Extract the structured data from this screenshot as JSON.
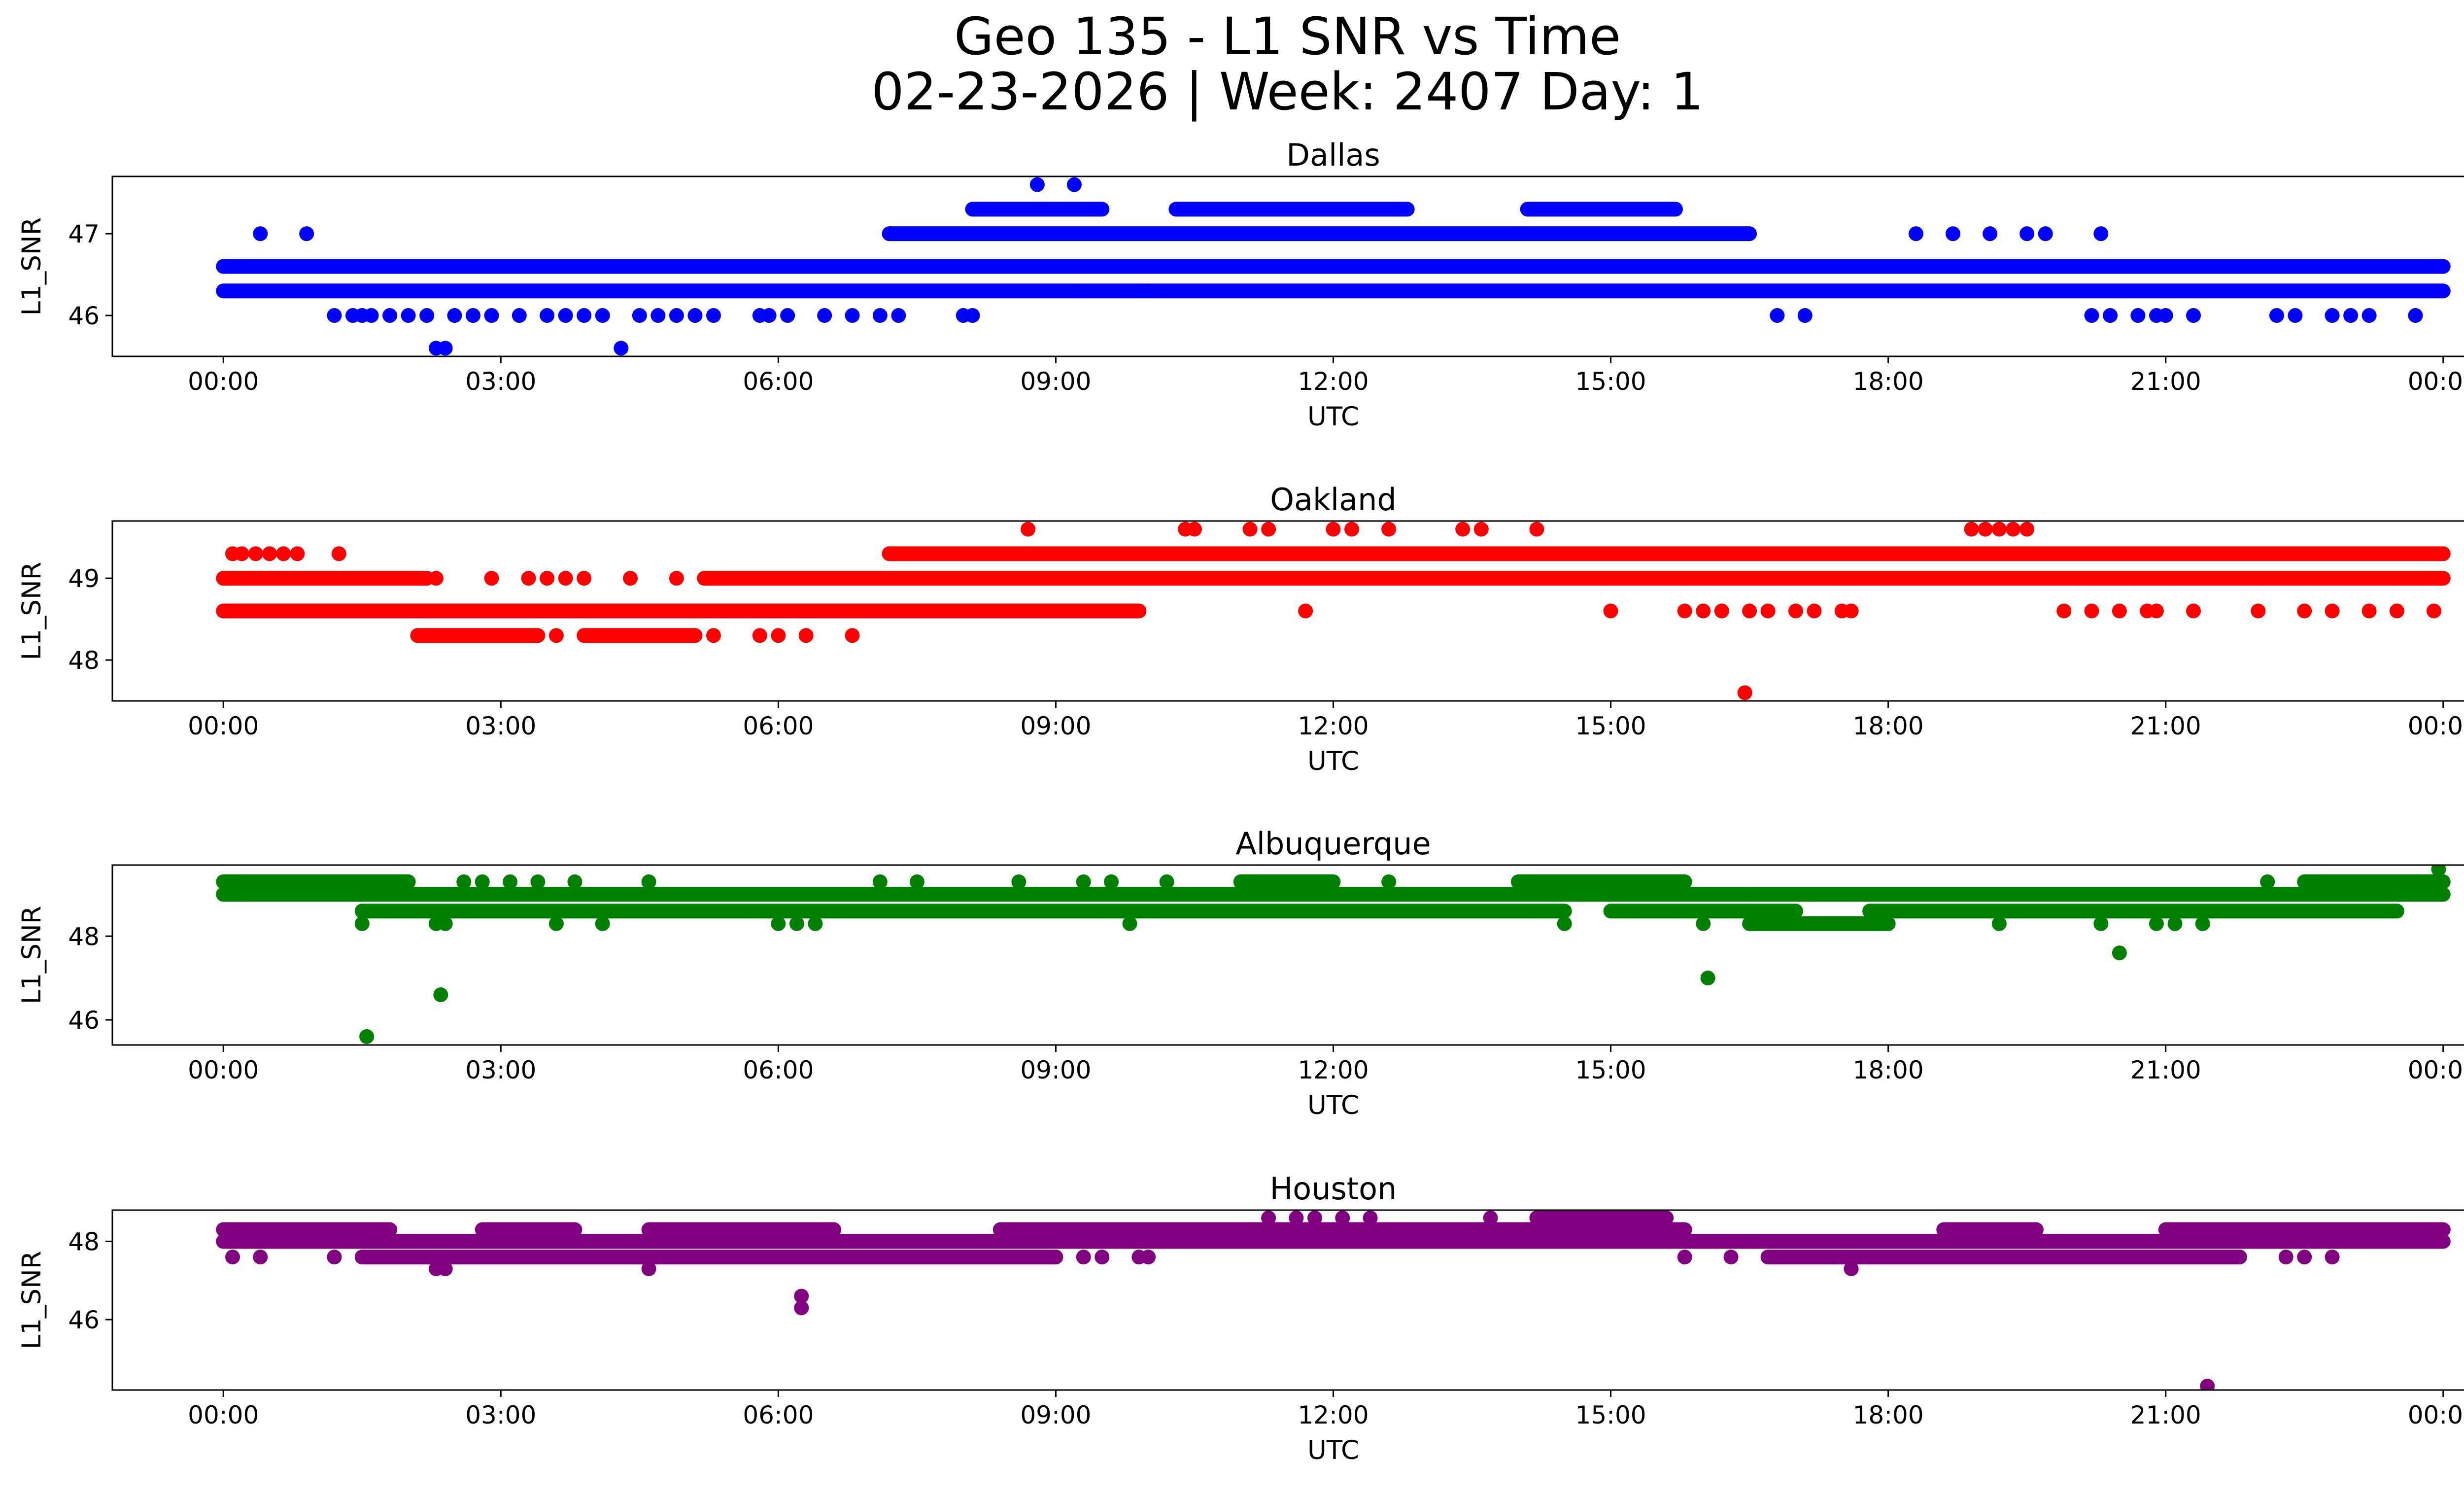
{
  "title_line1": "Geo 135 - L1 SNR vs Time",
  "title_line2": "02-23-2026 | Week: 2407 Day: 1",
  "chart_data": [
    {
      "type": "scatter",
      "title": "Dallas",
      "xlabel": "UTC",
      "ylabel": "L1_SNR",
      "color": "#0000ff",
      "xlim": [
        -1.2,
        25.2
      ],
      "ylim": [
        45.5,
        47.7
      ],
      "yticks": [
        46,
        47
      ],
      "xticks": [
        "00:00",
        "03:00",
        "06:00",
        "09:00",
        "12:00",
        "15:00",
        "18:00",
        "21:00",
        "00:00"
      ],
      "bands": [
        {
          "y": 46.3,
          "from": 0.0,
          "to": 24.0
        },
        {
          "y": 46.6,
          "from": 0.0,
          "to": 24.0
        },
        {
          "y": 47.0,
          "from": 7.2,
          "to": 16.5
        },
        {
          "y": 47.3,
          "from": 8.1,
          "to": 9.5
        },
        {
          "y": 47.3,
          "from": 10.3,
          "to": 12.8
        },
        {
          "y": 47.3,
          "from": 14.1,
          "to": 15.7
        }
      ],
      "points": [
        {
          "x": 0.4,
          "y": 47.0
        },
        {
          "x": 0.9,
          "y": 47.0
        },
        {
          "x": 1.2,
          "y": 46.0
        },
        {
          "x": 1.4,
          "y": 46.0
        },
        {
          "x": 1.5,
          "y": 46.0
        },
        {
          "x": 1.6,
          "y": 46.0
        },
        {
          "x": 1.8,
          "y": 46.0
        },
        {
          "x": 2.0,
          "y": 46.0
        },
        {
          "x": 2.1,
          "y": 46.6
        },
        {
          "x": 2.2,
          "y": 46.0
        },
        {
          "x": 2.3,
          "y": 45.6
        },
        {
          "x": 2.4,
          "y": 45.6
        },
        {
          "x": 2.5,
          "y": 46.0
        },
        {
          "x": 2.7,
          "y": 46.0
        },
        {
          "x": 2.9,
          "y": 46.0
        },
        {
          "x": 3.0,
          "y": 46.6
        },
        {
          "x": 3.2,
          "y": 46.0
        },
        {
          "x": 3.3,
          "y": 46.6
        },
        {
          "x": 3.5,
          "y": 46.0
        },
        {
          "x": 3.7,
          "y": 46.0
        },
        {
          "x": 3.9,
          "y": 46.0
        },
        {
          "x": 4.1,
          "y": 46.0
        },
        {
          "x": 4.3,
          "y": 45.6
        },
        {
          "x": 4.5,
          "y": 46.0
        },
        {
          "x": 4.7,
          "y": 46.0
        },
        {
          "x": 4.9,
          "y": 46.0
        },
        {
          "x": 5.1,
          "y": 46.0
        },
        {
          "x": 5.3,
          "y": 46.0
        },
        {
          "x": 5.8,
          "y": 46.0
        },
        {
          "x": 5.9,
          "y": 46.0
        },
        {
          "x": 6.1,
          "y": 46.0
        },
        {
          "x": 6.5,
          "y": 46.0
        },
        {
          "x": 6.8,
          "y": 46.0
        },
        {
          "x": 7.1,
          "y": 46.0
        },
        {
          "x": 7.3,
          "y": 46.0
        },
        {
          "x": 8.0,
          "y": 46.0
        },
        {
          "x": 8.1,
          "y": 46.0
        },
        {
          "x": 8.8,
          "y": 47.6
        },
        {
          "x": 9.2,
          "y": 47.6
        },
        {
          "x": 9.2,
          "y": 46.3
        },
        {
          "x": 9.9,
          "y": 46.3
        },
        {
          "x": 10.0,
          "y": 46.3
        },
        {
          "x": 11.5,
          "y": 46.6
        },
        {
          "x": 14.4,
          "y": 46.6
        },
        {
          "x": 16.8,
          "y": 46.0
        },
        {
          "x": 17.1,
          "y": 46.0
        },
        {
          "x": 18.3,
          "y": 47.0
        },
        {
          "x": 18.7,
          "y": 47.0
        },
        {
          "x": 19.1,
          "y": 47.0
        },
        {
          "x": 19.5,
          "y": 47.0
        },
        {
          "x": 19.7,
          "y": 47.0
        },
        {
          "x": 20.3,
          "y": 47.0
        },
        {
          "x": 20.2,
          "y": 46.0
        },
        {
          "x": 20.4,
          "y": 46.0
        },
        {
          "x": 20.7,
          "y": 46.0
        },
        {
          "x": 20.9,
          "y": 46.0
        },
        {
          "x": 21.0,
          "y": 46.0
        },
        {
          "x": 21.3,
          "y": 46.0
        },
        {
          "x": 22.2,
          "y": 46.0
        },
        {
          "x": 22.4,
          "y": 46.0
        },
        {
          "x": 22.8,
          "y": 46.0
        },
        {
          "x": 23.0,
          "y": 46.0
        },
        {
          "x": 23.2,
          "y": 46.0
        },
        {
          "x": 23.7,
          "y": 46.0
        }
      ]
    },
    {
      "type": "scatter",
      "title": "Oakland",
      "xlabel": "UTC",
      "ylabel": "L1_SNR",
      "color": "#ff0000",
      "xlim": [
        -1.2,
        25.2
      ],
      "ylim": [
        47.5,
        49.7
      ],
      "yticks": [
        48,
        49
      ],
      "xticks": [
        "00:00",
        "03:00",
        "06:00",
        "09:00",
        "12:00",
        "15:00",
        "18:00",
        "21:00",
        "00:00"
      ],
      "bands": [
        {
          "y": 48.6,
          "from": 0.0,
          "to": 9.9
        },
        {
          "y": 49.0,
          "from": 0.0,
          "to": 2.2
        },
        {
          "y": 49.0,
          "from": 5.2,
          "to": 24.0
        },
        {
          "y": 48.3,
          "from": 2.1,
          "to": 3.4
        },
        {
          "y": 48.3,
          "from": 3.9,
          "to": 5.1
        },
        {
          "y": 49.3,
          "from": 7.2,
          "to": 24.0
        }
      ],
      "points": [
        {
          "x": 0.1,
          "y": 49.3
        },
        {
          "x": 0.2,
          "y": 49.3
        },
        {
          "x": 0.35,
          "y": 49.3
        },
        {
          "x": 0.5,
          "y": 49.3
        },
        {
          "x": 0.65,
          "y": 49.3
        },
        {
          "x": 0.8,
          "y": 49.3
        },
        {
          "x": 1.25,
          "y": 49.3
        },
        {
          "x": 2.3,
          "y": 49.0
        },
        {
          "x": 2.9,
          "y": 49.0
        },
        {
          "x": 3.3,
          "y": 49.0
        },
        {
          "x": 3.5,
          "y": 49.0
        },
        {
          "x": 3.7,
          "y": 49.0
        },
        {
          "x": 3.9,
          "y": 49.0
        },
        {
          "x": 4.4,
          "y": 49.0
        },
        {
          "x": 4.9,
          "y": 49.0
        },
        {
          "x": 3.6,
          "y": 48.3
        },
        {
          "x": 5.3,
          "y": 48.3
        },
        {
          "x": 5.8,
          "y": 48.3
        },
        {
          "x": 6.0,
          "y": 48.3
        },
        {
          "x": 6.3,
          "y": 48.3
        },
        {
          "x": 6.8,
          "y": 48.3
        },
        {
          "x": 8.7,
          "y": 49.6
        },
        {
          "x": 10.4,
          "y": 49.6
        },
        {
          "x": 10.5,
          "y": 49.6
        },
        {
          "x": 11.1,
          "y": 49.6
        },
        {
          "x": 11.3,
          "y": 49.6
        },
        {
          "x": 12.0,
          "y": 49.6
        },
        {
          "x": 12.2,
          "y": 49.6
        },
        {
          "x": 12.6,
          "y": 49.6
        },
        {
          "x": 13.4,
          "y": 49.6
        },
        {
          "x": 13.6,
          "y": 49.6
        },
        {
          "x": 14.2,
          "y": 49.6
        },
        {
          "x": 11.7,
          "y": 48.6
        },
        {
          "x": 15.0,
          "y": 48.6
        },
        {
          "x": 15.8,
          "y": 48.6
        },
        {
          "x": 16.0,
          "y": 48.6
        },
        {
          "x": 16.2,
          "y": 48.6
        },
        {
          "x": 16.5,
          "y": 48.6
        },
        {
          "x": 16.7,
          "y": 48.6
        },
        {
          "x": 17.0,
          "y": 48.6
        },
        {
          "x": 17.2,
          "y": 48.6
        },
        {
          "x": 17.5,
          "y": 48.6
        },
        {
          "x": 17.6,
          "y": 48.6
        },
        {
          "x": 16.45,
          "y": 47.6
        },
        {
          "x": 18.9,
          "y": 49.6
        },
        {
          "x": 19.05,
          "y": 49.6
        },
        {
          "x": 19.2,
          "y": 49.6
        },
        {
          "x": 19.35,
          "y": 49.6
        },
        {
          "x": 19.5,
          "y": 49.6
        },
        {
          "x": 19.9,
          "y": 48.6
        },
        {
          "x": 20.2,
          "y": 48.6
        },
        {
          "x": 20.5,
          "y": 48.6
        },
        {
          "x": 20.8,
          "y": 48.6
        },
        {
          "x": 20.9,
          "y": 48.6
        },
        {
          "x": 21.3,
          "y": 48.6
        },
        {
          "x": 22.0,
          "y": 48.6
        },
        {
          "x": 22.5,
          "y": 48.6
        },
        {
          "x": 22.8,
          "y": 48.6
        },
        {
          "x": 23.2,
          "y": 48.6
        },
        {
          "x": 23.5,
          "y": 48.6
        },
        {
          "x": 23.9,
          "y": 48.6
        }
      ]
    },
    {
      "type": "scatter",
      "title": "Albuquerque",
      "xlabel": "UTC",
      "ylabel": "L1_SNR",
      "color": "#008000",
      "xlim": [
        -1.2,
        25.2
      ],
      "ylim": [
        45.4,
        49.7
      ],
      "yticks": [
        46,
        48
      ],
      "xticks": [
        "00:00",
        "03:00",
        "06:00",
        "09:00",
        "12:00",
        "15:00",
        "18:00",
        "21:00",
        "00:00"
      ],
      "bands": [
        {
          "y": 49.0,
          "from": 0.0,
          "to": 24.0
        },
        {
          "y": 49.3,
          "from": 0.0,
          "to": 2.0
        },
        {
          "y": 48.6,
          "from": 1.5,
          "to": 14.5
        },
        {
          "y": 48.6,
          "from": 15.0,
          "to": 17.0
        },
        {
          "y": 48.6,
          "from": 17.8,
          "to": 23.5
        },
        {
          "y": 49.3,
          "from": 11.0,
          "to": 12.0
        },
        {
          "y": 49.3,
          "from": 14.0,
          "to": 15.8
        },
        {
          "y": 48.3,
          "from": 16.5,
          "to": 18.0
        },
        {
          "y": 49.3,
          "from": 22.5,
          "to": 24.0
        }
      ],
      "points": [
        {
          "x": 1.55,
          "y": 45.6
        },
        {
          "x": 2.35,
          "y": 46.6
        },
        {
          "x": 16.05,
          "y": 47.0
        },
        {
          "x": 20.5,
          "y": 47.6
        },
        {
          "x": 23.95,
          "y": 49.6
        },
        {
          "x": 1.5,
          "y": 48.3
        },
        {
          "x": 2.3,
          "y": 48.3
        },
        {
          "x": 2.4,
          "y": 48.3
        },
        {
          "x": 3.6,
          "y": 48.3
        },
        {
          "x": 4.1,
          "y": 48.3
        },
        {
          "x": 6.0,
          "y": 48.3
        },
        {
          "x": 6.2,
          "y": 48.3
        },
        {
          "x": 6.4,
          "y": 48.3
        },
        {
          "x": 9.8,
          "y": 48.3
        },
        {
          "x": 16.0,
          "y": 48.3
        },
        {
          "x": 19.2,
          "y": 48.3
        },
        {
          "x": 20.3,
          "y": 48.3
        },
        {
          "x": 20.9,
          "y": 48.3
        },
        {
          "x": 21.1,
          "y": 48.3
        },
        {
          "x": 21.4,
          "y": 48.3
        },
        {
          "x": 2.6,
          "y": 49.3
        },
        {
          "x": 2.8,
          "y": 49.3
        },
        {
          "x": 3.1,
          "y": 49.3
        },
        {
          "x": 3.4,
          "y": 49.3
        },
        {
          "x": 3.8,
          "y": 49.3
        },
        {
          "x": 4.6,
          "y": 49.3
        },
        {
          "x": 7.1,
          "y": 49.3
        },
        {
          "x": 7.5,
          "y": 49.3
        },
        {
          "x": 8.6,
          "y": 49.3
        },
        {
          "x": 9.3,
          "y": 49.3
        },
        {
          "x": 9.6,
          "y": 49.3
        },
        {
          "x": 10.2,
          "y": 49.3
        },
        {
          "x": 12.6,
          "y": 49.3
        },
        {
          "x": 14.5,
          "y": 48.3
        },
        {
          "x": 22.1,
          "y": 49.3
        },
        {
          "x": 16.5,
          "y": 49.0
        },
        {
          "x": 17.2,
          "y": 49.0
        }
      ]
    },
    {
      "type": "scatter",
      "title": "Houston",
      "xlabel": "UTC",
      "ylabel": "L1_SNR",
      "color": "#800080",
      "xlim": [
        -1.2,
        25.2
      ],
      "ylim": [
        44.2,
        48.8
      ],
      "yticks": [
        46,
        48
      ],
      "xticks": [
        "00:00",
        "03:00",
        "06:00",
        "09:00",
        "12:00",
        "15:00",
        "18:00",
        "21:00",
        "00:00"
      ],
      "bands": [
        {
          "y": 48.0,
          "from": 0.0,
          "to": 24.0
        },
        {
          "y": 48.3,
          "from": 0.0,
          "to": 1.8
        },
        {
          "y": 48.3,
          "from": 2.8,
          "to": 3.8
        },
        {
          "y": 48.3,
          "from": 4.6,
          "to": 6.6
        },
        {
          "y": 48.3,
          "from": 8.4,
          "to": 15.8
        },
        {
          "y": 48.3,
          "from": 18.6,
          "to": 19.6
        },
        {
          "y": 48.3,
          "from": 21.0,
          "to": 24.0
        },
        {
          "y": 47.6,
          "from": 1.5,
          "to": 9.0
        },
        {
          "y": 47.6,
          "from": 16.7,
          "to": 21.8
        },
        {
          "y": 48.6,
          "from": 14.2,
          "to": 15.6
        }
      ],
      "points": [
        {
          "x": 6.25,
          "y": 46.6
        },
        {
          "x": 6.25,
          "y": 46.3
        },
        {
          "x": 21.45,
          "y": 44.3
        },
        {
          "x": 0.1,
          "y": 47.6
        },
        {
          "x": 0.4,
          "y": 47.6
        },
        {
          "x": 1.2,
          "y": 47.6
        },
        {
          "x": 2.3,
          "y": 47.3
        },
        {
          "x": 2.4,
          "y": 47.3
        },
        {
          "x": 4.6,
          "y": 47.3
        },
        {
          "x": 17.6,
          "y": 47.3
        },
        {
          "x": 9.3,
          "y": 47.6
        },
        {
          "x": 9.5,
          "y": 47.6
        },
        {
          "x": 9.9,
          "y": 47.6
        },
        {
          "x": 10.0,
          "y": 47.6
        },
        {
          "x": 15.8,
          "y": 47.6
        },
        {
          "x": 16.3,
          "y": 47.6
        },
        {
          "x": 22.3,
          "y": 47.6
        },
        {
          "x": 22.5,
          "y": 47.6
        },
        {
          "x": 22.8,
          "y": 47.6
        },
        {
          "x": 11.3,
          "y": 48.6
        },
        {
          "x": 11.6,
          "y": 48.6
        },
        {
          "x": 11.8,
          "y": 48.6
        },
        {
          "x": 12.1,
          "y": 48.6
        },
        {
          "x": 12.4,
          "y": 48.6
        },
        {
          "x": 13.7,
          "y": 48.6
        }
      ]
    }
  ]
}
